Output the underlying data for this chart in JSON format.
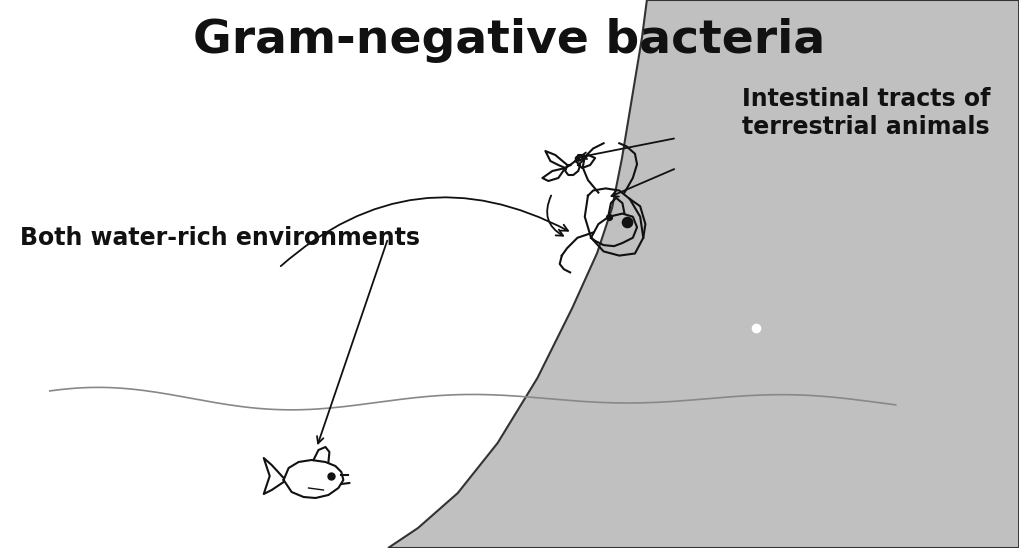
{
  "title": "Gram-negative bacteria",
  "title_fontsize": 34,
  "title_fontweight": "bold",
  "label_intestinal": "Intestinal tracts of\nterrestrial animals",
  "label_water": "Both water-rich environments",
  "label_fontsize": 17,
  "label_fontweight": "bold",
  "bg_color": "#ffffff",
  "drawing_color": "#111111",
  "hill_color": "#c0c0c0",
  "hill_edge_color": "#333333",
  "note_color": "#555555"
}
